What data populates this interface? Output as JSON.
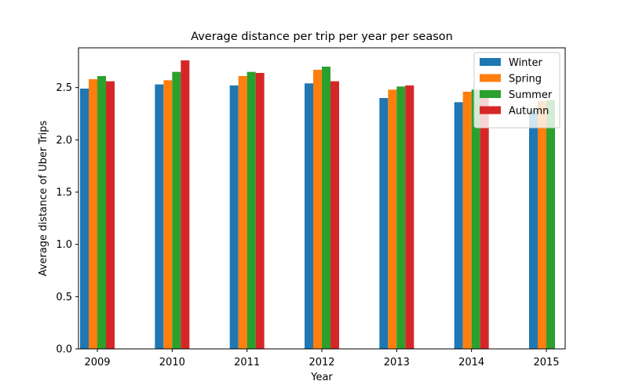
{
  "chart_data": {
    "type": "bar",
    "title": "Average distance per trip per year per season",
    "xlabel": "Year",
    "ylabel": "Average distance of Uber Trips",
    "categories": [
      "2009",
      "2010",
      "2011",
      "2012",
      "2013",
      "2014",
      "2015"
    ],
    "ylim": [
      0,
      2.88
    ],
    "yticks": [
      0.0,
      0.5,
      1.0,
      1.5,
      2.0,
      2.5
    ],
    "ytick_labels": [
      "0.0",
      "0.5",
      "1.0",
      "1.5",
      "2.0",
      "2.5"
    ],
    "grid": false,
    "legend_position": "top-right",
    "series": [
      {
        "name": "Winter",
        "color": "#1f77b4",
        "values": [
          2.49,
          2.53,
          2.52,
          2.54,
          2.4,
          2.36,
          2.28
        ]
      },
      {
        "name": "Spring",
        "color": "#ff7f0e",
        "values": [
          2.58,
          2.57,
          2.61,
          2.67,
          2.48,
          2.46,
          2.37
        ]
      },
      {
        "name": "Summer",
        "color": "#2ca02c",
        "values": [
          2.61,
          2.65,
          2.65,
          2.7,
          2.51,
          2.48,
          2.38
        ]
      },
      {
        "name": "Autumn",
        "color": "#d62728",
        "values": [
          2.56,
          2.76,
          2.64,
          2.56,
          2.52,
          2.44,
          null
        ]
      }
    ]
  }
}
